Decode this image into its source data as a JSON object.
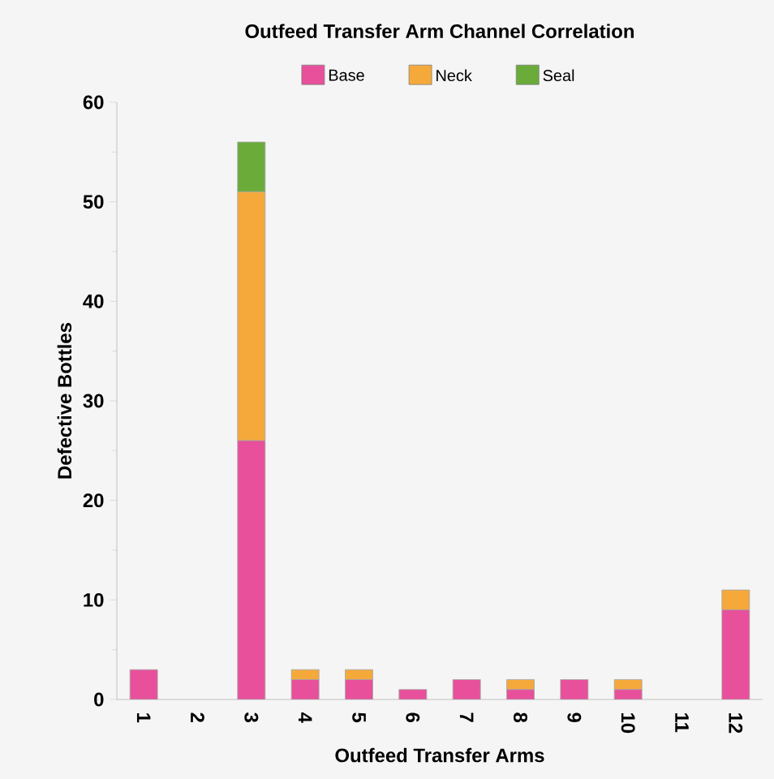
{
  "chart_data": {
    "type": "bar",
    "stacked": true,
    "title": "Outfeed Transfer Arm Channel Correlation",
    "xlabel": "Outfeed Transfer Arms",
    "ylabel": "Defective Bottles",
    "categories": [
      "1",
      "2",
      "3",
      "4",
      "5",
      "6",
      "7",
      "8",
      "9",
      "10",
      "11",
      "12"
    ],
    "series": [
      {
        "name": "Base",
        "color": "#e8509b",
        "values": [
          3,
          0,
          26,
          2,
          2,
          1,
          2,
          1,
          2,
          1,
          0,
          9
        ]
      },
      {
        "name": "Neck",
        "color": "#f5a93b",
        "values": [
          0,
          0,
          25,
          1,
          1,
          0,
          0,
          1,
          0,
          1,
          0,
          2
        ]
      },
      {
        "name": "Seal",
        "color": "#6aab3a",
        "values": [
          0,
          0,
          5,
          0,
          0,
          0,
          0,
          0,
          0,
          0,
          0,
          0
        ]
      }
    ],
    "ylim": [
      0,
      60
    ],
    "yticks": [
      0,
      10,
      20,
      30,
      40,
      50,
      60
    ],
    "legend": "top",
    "grid": false
  }
}
